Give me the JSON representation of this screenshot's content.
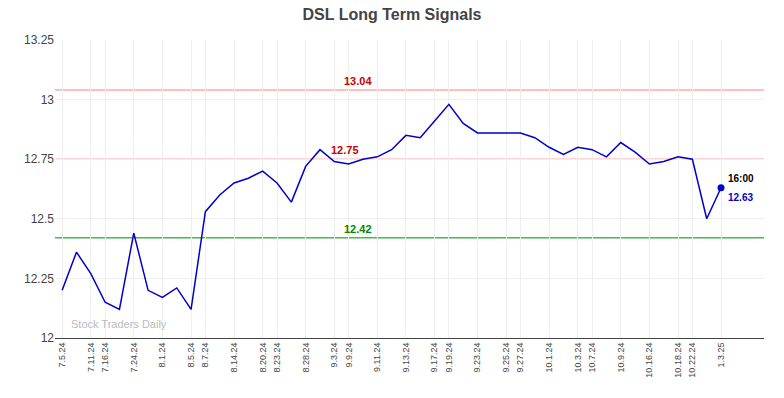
{
  "chart_data": {
    "type": "line",
    "title": "DSL Long Term Signals",
    "categories": [
      "7.5.24",
      null,
      "7.11.24",
      "7.16.24",
      null,
      "7.24.24",
      null,
      "8.1.24",
      null,
      "8.5.24",
      "8.7.24",
      null,
      "8.14.24",
      null,
      "8.20.24",
      "8.23.24",
      null,
      "8.28.24",
      null,
      "9.3.24",
      "9.9.24",
      null,
      "9.11.24",
      null,
      "9.13.24",
      null,
      "9.17.24",
      "9.19.24",
      null,
      "9.23.24",
      null,
      "9.25.24",
      "9.27.24",
      null,
      "10.1.24",
      null,
      "10.3.24",
      "10.7.24",
      null,
      "10.9.24",
      null,
      "10.16.24",
      null,
      "10.18.24",
      "10.22.24",
      null,
      "1.3.25"
    ],
    "values": [
      12.2,
      12.36,
      12.27,
      12.15,
      12.12,
      12.44,
      12.2,
      12.17,
      12.21,
      12.12,
      12.53,
      12.6,
      12.65,
      12.67,
      12.7,
      12.65,
      12.57,
      12.72,
      12.79,
      12.74,
      12.73,
      12.75,
      12.76,
      12.79,
      12.85,
      12.84,
      12.91,
      12.98,
      12.9,
      12.86,
      12.86,
      12.86,
      12.86,
      12.84,
      12.8,
      12.77,
      12.8,
      12.79,
      12.76,
      12.82,
      12.78,
      12.73,
      12.74,
      12.76,
      12.75,
      12.5,
      12.63
    ],
    "color": "#0000cc",
    "ylim": [
      12.0,
      13.25
    ],
    "yticks": [
      12,
      12.25,
      12.5,
      12.75,
      13,
      13.25
    ],
    "grid": true,
    "hlines": [
      {
        "y": 13.04,
        "color": "#ffaaaa",
        "label": "13.04",
        "label_color": "#cc0000"
      },
      {
        "y": 12.75,
        "color": "#ffaaaa",
        "label": "12.75",
        "label_color": "#cc0000"
      },
      {
        "y": 12.42,
        "color": "#44bb44",
        "label": "12.42",
        "label_color": "#008800"
      }
    ],
    "end_point": {
      "marker": "circle",
      "color": "#0000cc",
      "labels": [
        "16:00",
        "12.63"
      ],
      "label_colors": [
        "#000000",
        "#0000cc"
      ]
    },
    "watermark": "Stock Traders Daily",
    "watermark_color": "#bbbbbb"
  }
}
